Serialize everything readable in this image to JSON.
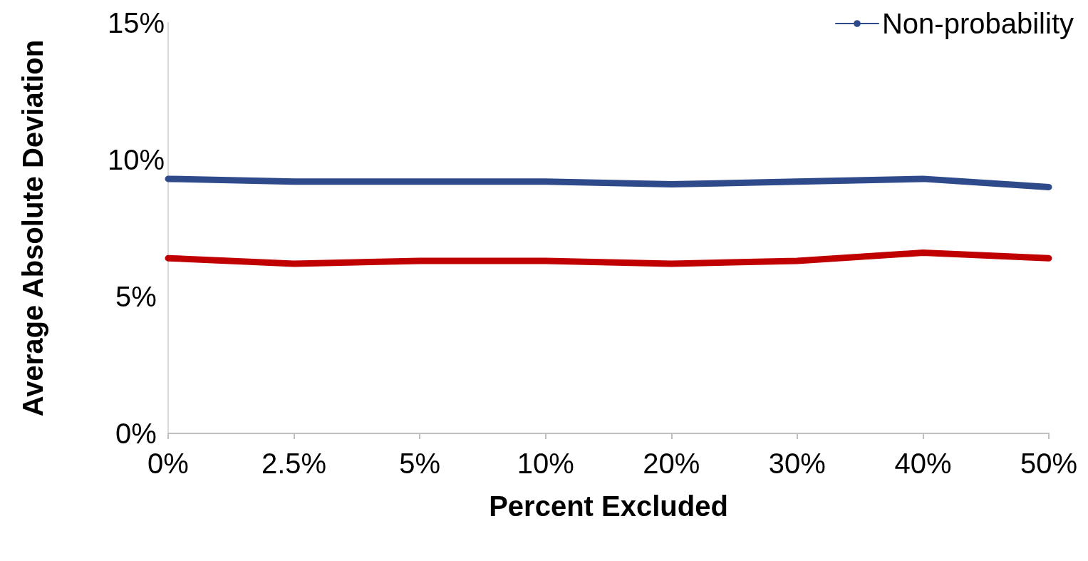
{
  "chart_data": {
    "type": "line",
    "xlabel": "Percent Excluded",
    "ylabel": "Average Absolute Deviation",
    "categories": [
      "0%",
      "2.5%",
      "5%",
      "10%",
      "20%",
      "30%",
      "40%",
      "50%"
    ],
    "series": [
      {
        "color": "#c00000",
        "values": [
          6.4,
          6.2,
          6.3,
          6.3,
          6.2,
          6.3,
          6.6,
          6.4
        ]
      },
      {
        "name": "Non-probability",
        "color": "#2e4a8b",
        "values": [
          9.3,
          9.2,
          9.2,
          9.2,
          9.1,
          9.2,
          9.3,
          9.0
        ]
      }
    ],
    "ylim": [
      0,
      15
    ],
    "yticks": [
      {
        "value": 0,
        "label": "0%"
      },
      {
        "value": 5,
        "label": "5%"
      },
      {
        "value": 10,
        "label": "10%"
      },
      {
        "value": 15,
        "label": "15%"
      }
    ],
    "grid": false,
    "legend": "top right",
    "marker": "none",
    "line_style": "solid"
  }
}
